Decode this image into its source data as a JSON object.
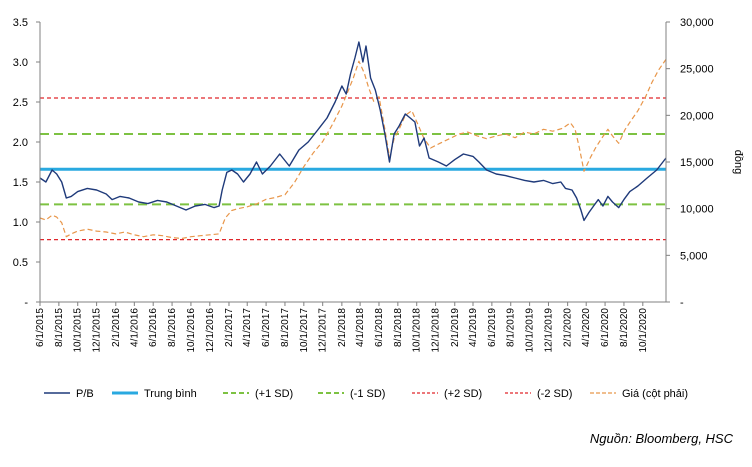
{
  "chart_data": {
    "type": "line",
    "y_left": {
      "ticks": [
        {
          "v": 0,
          "label": "-"
        },
        {
          "v": 0.5,
          "label": "0.5"
        },
        {
          "v": 1.0,
          "label": "1.0"
        },
        {
          "v": 1.5,
          "label": "1.5"
        },
        {
          "v": 2.0,
          "label": "2.0"
        },
        {
          "v": 2.5,
          "label": "2.5"
        },
        {
          "v": 3.0,
          "label": "3.0"
        },
        {
          "v": 3.5,
          "label": "3.5"
        }
      ],
      "range": [
        0,
        3.5
      ]
    },
    "y_right": {
      "label": "đồng",
      "ticks": [
        {
          "v": 0,
          "label": "-"
        },
        {
          "v": 5000,
          "label": "5,000"
        },
        {
          "v": 10000,
          "label": "10,000"
        },
        {
          "v": 15000,
          "label": "15,000"
        },
        {
          "v": 20000,
          "label": "20,000"
        },
        {
          "v": 25000,
          "label": "25,000"
        },
        {
          "v": 30000,
          "label": "30,000"
        }
      ],
      "range": [
        0,
        30000
      ]
    },
    "x_ticks": [
      "6/1/2015",
      "8/1/2015",
      "10/1/2015",
      "12/1/2015",
      "2/1/2016",
      "4/1/2016",
      "6/1/2016",
      "8/1/2016",
      "10/1/2016",
      "12/1/2016",
      "2/1/2017",
      "4/1/2017",
      "6/1/2017",
      "8/1/2017",
      "10/1/2017",
      "12/1/2017",
      "2/1/2018",
      "4/1/2018",
      "6/1/2018",
      "8/1/2018",
      "10/1/2018",
      "12/1/2018",
      "2/1/2019",
      "4/1/2019",
      "6/1/2019",
      "8/1/2019",
      "10/1/2019",
      "12/1/2019",
      "2/1/2020",
      "4/1/2020",
      "6/1/2020",
      "8/1/2020",
      "10/1/2020"
    ],
    "x_range": [
      "2015-06-01",
      "2020-12-15"
    ],
    "reference_lines": [
      {
        "name": "Trung bình",
        "value": 1.66,
        "color": "#29A9E0",
        "style": "solid"
      },
      {
        "name": "(+1 SD)",
        "value": 2.1,
        "color": "#7DC242",
        "style": "dashed"
      },
      {
        "name": "(-1 SD)",
        "value": 1.22,
        "color": "#7DC242",
        "style": "dashed"
      },
      {
        "name": "(+2 SD)",
        "value": 2.55,
        "color": "#E0262B",
        "style": "dotted"
      },
      {
        "name": "(-2 SD)",
        "value": 0.78,
        "color": "#E0262B",
        "style": "dotted"
      }
    ],
    "series": [
      {
        "name": "P/B",
        "axis": "left",
        "color": "#1F3A7A",
        "points": [
          [
            "2015-06-01",
            1.55
          ],
          [
            "2015-06-20",
            1.5
          ],
          [
            "2015-07-10",
            1.65
          ],
          [
            "2015-07-25",
            1.6
          ],
          [
            "2015-08-10",
            1.5
          ],
          [
            "2015-08-25",
            1.3
          ],
          [
            "2015-09-10",
            1.32
          ],
          [
            "2015-10-01",
            1.38
          ],
          [
            "2015-11-01",
            1.42
          ],
          [
            "2015-12-01",
            1.4
          ],
          [
            "2016-01-01",
            1.35
          ],
          [
            "2016-01-20",
            1.28
          ],
          [
            "2016-02-15",
            1.32
          ],
          [
            "2016-03-15",
            1.3
          ],
          [
            "2016-04-15",
            1.25
          ],
          [
            "2016-05-15",
            1.23
          ],
          [
            "2016-06-15",
            1.27
          ],
          [
            "2016-07-15",
            1.25
          ],
          [
            "2016-08-15",
            1.2
          ],
          [
            "2016-09-15",
            1.15
          ],
          [
            "2016-10-15",
            1.2
          ],
          [
            "2016-11-15",
            1.22
          ],
          [
            "2016-12-15",
            1.18
          ],
          [
            "2016-12-31",
            1.2
          ],
          [
            "2017-01-10",
            1.4
          ],
          [
            "2017-01-25",
            1.62
          ],
          [
            "2017-02-10",
            1.65
          ],
          [
            "2017-03-01",
            1.6
          ],
          [
            "2017-03-20",
            1.5
          ],
          [
            "2017-04-10",
            1.6
          ],
          [
            "2017-05-01",
            1.75
          ],
          [
            "2017-05-20",
            1.6
          ],
          [
            "2017-06-15",
            1.7
          ],
          [
            "2017-07-15",
            1.85
          ],
          [
            "2017-08-15",
            1.7
          ],
          [
            "2017-09-15",
            1.9
          ],
          [
            "2017-10-15",
            2.0
          ],
          [
            "2017-11-15",
            2.15
          ],
          [
            "2017-12-15",
            2.3
          ],
          [
            "2018-01-10",
            2.5
          ],
          [
            "2018-02-01",
            2.7
          ],
          [
            "2018-02-15",
            2.6
          ],
          [
            "2018-03-01",
            2.85
          ],
          [
            "2018-03-15",
            3.05
          ],
          [
            "2018-03-28",
            3.25
          ],
          [
            "2018-04-10",
            3.0
          ],
          [
            "2018-04-20",
            3.2
          ],
          [
            "2018-05-05",
            2.8
          ],
          [
            "2018-05-20",
            2.65
          ],
          [
            "2018-06-05",
            2.4
          ],
          [
            "2018-06-20",
            2.1
          ],
          [
            "2018-07-05",
            1.75
          ],
          [
            "2018-07-20",
            2.1
          ],
          [
            "2018-08-05",
            2.2
          ],
          [
            "2018-08-25",
            2.35
          ],
          [
            "2018-09-10",
            2.3
          ],
          [
            "2018-09-25",
            2.25
          ],
          [
            "2018-10-10",
            1.95
          ],
          [
            "2018-10-25",
            2.05
          ],
          [
            "2018-11-10",
            1.8
          ],
          [
            "2018-12-10",
            1.75
          ],
          [
            "2019-01-05",
            1.7
          ],
          [
            "2019-02-01",
            1.78
          ],
          [
            "2019-03-01",
            1.85
          ],
          [
            "2019-04-01",
            1.82
          ],
          [
            "2019-04-20",
            1.75
          ],
          [
            "2019-05-15",
            1.65
          ],
          [
            "2019-06-15",
            1.6
          ],
          [
            "2019-07-15",
            1.58
          ],
          [
            "2019-08-15",
            1.55
          ],
          [
            "2019-09-15",
            1.52
          ],
          [
            "2019-10-15",
            1.5
          ],
          [
            "2019-11-15",
            1.52
          ],
          [
            "2019-12-15",
            1.48
          ],
          [
            "2020-01-10",
            1.5
          ],
          [
            "2020-01-25",
            1.42
          ],
          [
            "2020-02-15",
            1.4
          ],
          [
            "2020-03-01",
            1.3
          ],
          [
            "2020-03-15",
            1.15
          ],
          [
            "2020-03-25",
            1.02
          ],
          [
            "2020-04-10",
            1.12
          ],
          [
            "2020-04-25",
            1.2
          ],
          [
            "2020-05-10",
            1.28
          ],
          [
            "2020-05-25",
            1.2
          ],
          [
            "2020-06-10",
            1.32
          ],
          [
            "2020-06-25",
            1.25
          ],
          [
            "2020-07-15",
            1.18
          ],
          [
            "2020-08-01",
            1.28
          ],
          [
            "2020-08-20",
            1.38
          ],
          [
            "2020-09-15",
            1.45
          ],
          [
            "2020-10-15",
            1.55
          ],
          [
            "2020-11-15",
            1.65
          ],
          [
            "2020-12-15",
            1.8
          ]
        ]
      },
      {
        "name": "Giá (cột phải)",
        "axis": "right",
        "color": "#E8964A",
        "points": [
          [
            "2015-06-01",
            9000
          ],
          [
            "2015-06-20",
            8800
          ],
          [
            "2015-07-10",
            9300
          ],
          [
            "2015-07-25",
            9100
          ],
          [
            "2015-08-10",
            8500
          ],
          [
            "2015-08-25",
            7000
          ],
          [
            "2015-09-10",
            7300
          ],
          [
            "2015-10-01",
            7600
          ],
          [
            "2015-11-01",
            7800
          ],
          [
            "2015-12-01",
            7600
          ],
          [
            "2016-01-01",
            7500
          ],
          [
            "2016-02-01",
            7300
          ],
          [
            "2016-03-01",
            7500
          ],
          [
            "2016-04-01",
            7200
          ],
          [
            "2016-05-01",
            7000
          ],
          [
            "2016-06-01",
            7200
          ],
          [
            "2016-07-01",
            7100
          ],
          [
            "2016-08-01",
            6900
          ],
          [
            "2016-09-01",
            6800
          ],
          [
            "2016-10-01",
            7000
          ],
          [
            "2016-11-01",
            7100
          ],
          [
            "2016-12-01",
            7200
          ],
          [
            "2016-12-31",
            7300
          ],
          [
            "2017-01-20",
            9000
          ],
          [
            "2017-02-10",
            9800
          ],
          [
            "2017-03-01",
            10000
          ],
          [
            "2017-04-01",
            10200
          ],
          [
            "2017-05-01",
            10500
          ],
          [
            "2017-06-01",
            11000
          ],
          [
            "2017-07-01",
            11200
          ],
          [
            "2017-08-01",
            11500
          ],
          [
            "2017-09-01",
            12800
          ],
          [
            "2017-10-01",
            14500
          ],
          [
            "2017-11-01",
            16000
          ],
          [
            "2017-12-01",
            17200
          ],
          [
            "2018-01-01",
            19000
          ],
          [
            "2018-02-01",
            21000
          ],
          [
            "2018-02-20",
            22500
          ],
          [
            "2018-03-10",
            24000
          ],
          [
            "2018-03-28",
            25800
          ],
          [
            "2018-04-15",
            24500
          ],
          [
            "2018-04-28",
            23000
          ],
          [
            "2018-05-15",
            21500
          ],
          [
            "2018-06-01",
            22000
          ],
          [
            "2018-06-20",
            18500
          ],
          [
            "2018-07-05",
            15500
          ],
          [
            "2018-07-20",
            17500
          ],
          [
            "2018-08-05",
            18500
          ],
          [
            "2018-08-25",
            20000
          ],
          [
            "2018-09-15",
            20500
          ],
          [
            "2018-10-05",
            19000
          ],
          [
            "2018-10-25",
            17500
          ],
          [
            "2018-11-15",
            16500
          ],
          [
            "2018-12-15",
            17000
          ],
          [
            "2019-01-15",
            17500
          ],
          [
            "2019-02-15",
            18000
          ],
          [
            "2019-03-15",
            18200
          ],
          [
            "2019-04-15",
            17800
          ],
          [
            "2019-05-15",
            17500
          ],
          [
            "2019-06-15",
            17800
          ],
          [
            "2019-07-15",
            18000
          ],
          [
            "2019-08-15",
            17600
          ],
          [
            "2019-09-15",
            18200
          ],
          [
            "2019-10-15",
            18000
          ],
          [
            "2019-11-15",
            18500
          ],
          [
            "2019-12-15",
            18300
          ],
          [
            "2020-01-15",
            18600
          ],
          [
            "2020-02-10",
            19200
          ],
          [
            "2020-02-25",
            18500
          ],
          [
            "2020-03-10",
            16500
          ],
          [
            "2020-03-25",
            14000
          ],
          [
            "2020-04-15",
            15500
          ],
          [
            "2020-05-01",
            16500
          ],
          [
            "2020-05-20",
            17500
          ],
          [
            "2020-06-10",
            18500
          ],
          [
            "2020-06-25",
            17800
          ],
          [
            "2020-07-15",
            17000
          ],
          [
            "2020-08-05",
            18500
          ],
          [
            "2020-08-25",
            19500
          ],
          [
            "2020-09-15",
            20500
          ],
          [
            "2020-10-10",
            22000
          ],
          [
            "2020-10-30",
            23500
          ],
          [
            "2020-11-20",
            24800
          ],
          [
            "2020-12-15",
            26000
          ]
        ]
      }
    ],
    "legend": [
      {
        "label": "P/B",
        "color": "#1F3A7A",
        "style": "solid"
      },
      {
        "label": "Trung bình",
        "color": "#29A9E0",
        "style": "solid-thick"
      },
      {
        "label": "(+1 SD)",
        "color": "#7DC242",
        "style": "dashed"
      },
      {
        "label": "(-1 SD)",
        "color": "#7DC242",
        "style": "dashed"
      },
      {
        "label": "(+2 SD)",
        "color": "#E0262B",
        "style": "dotted"
      },
      {
        "label": "(-2 SD)",
        "color": "#E0262B",
        "style": "dotted"
      },
      {
        "label": "Giá (cột phải)",
        "color": "#E8964A",
        "style": "dashed-thin"
      }
    ],
    "legend_position": "bottom",
    "grid": false
  },
  "source": "Nguồn: Bloomberg, HSC"
}
